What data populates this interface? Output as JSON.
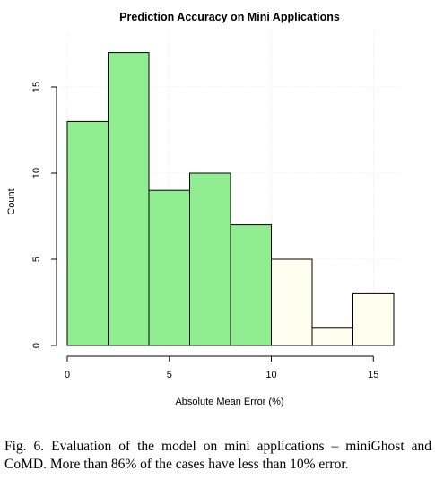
{
  "chart_data": {
    "type": "bar",
    "title": "Prediction Accuracy on Mini Applications",
    "xlabel": "Absolute Mean Error (%)",
    "ylabel": "Count",
    "bins": [
      {
        "x0": 0,
        "x1": 2,
        "count": 13,
        "color": "#90ee90"
      },
      {
        "x0": 2,
        "x1": 4,
        "count": 17,
        "color": "#90ee90"
      },
      {
        "x0": 4,
        "x1": 6,
        "count": 9,
        "color": "#90ee90"
      },
      {
        "x0": 6,
        "x1": 8,
        "count": 10,
        "color": "#90ee90"
      },
      {
        "x0": 8,
        "x1": 10,
        "count": 7,
        "color": "#90ee90"
      },
      {
        "x0": 10,
        "x1": 12,
        "count": 5,
        "color": "#fffff0"
      },
      {
        "x0": 12,
        "x1": 14,
        "count": 1,
        "color": "#fffff0"
      },
      {
        "x0": 14,
        "x1": 16,
        "count": 3,
        "color": "#fffff0"
      }
    ],
    "xlim": [
      0,
      16
    ],
    "ylim": [
      0,
      17
    ],
    "xticks": [
      0,
      5,
      10,
      15
    ],
    "yticks": [
      0,
      5,
      10,
      15
    ],
    "grid": true
  },
  "caption": "Fig. 6.   Evaluation of the model on mini applications – miniGhost and CoMD. More than 86% of the cases have less than 10% error."
}
